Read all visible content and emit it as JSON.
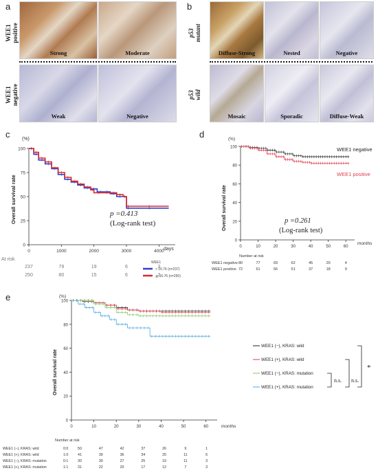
{
  "panel_a": {
    "letter": "a",
    "row_labels": {
      "positive": "WEE1\npositive",
      "negative": "WEE1\nnegative"
    },
    "tiles": [
      "Strong",
      "Moderate",
      "Weak",
      "Negative"
    ]
  },
  "panel_b": {
    "letter": "b",
    "row_labels": {
      "mutant": "p53\nmutant",
      "wild": "p53\nwild"
    },
    "tiles": [
      "Diffuse-Strong",
      "Nested",
      "Negative",
      "Mosaic",
      "Sporadic",
      "Diffuse-Weak"
    ]
  },
  "panel_c": {
    "letter": "c",
    "y_unit": "(%)",
    "x_unit": "days",
    "ylabel": "Overall survival rate",
    "pvalue": "p =0.413",
    "test": "(Log-rank test)",
    "at_risk_label": "At risk",
    "legend_title": "WEE1",
    "legend": [
      "< 16.76 (n=237)",
      "≧ 16.76 (n=250)"
    ],
    "at_risk_rows": [
      [
        "237",
        "79",
        "19",
        "6",
        "3"
      ],
      [
        "250",
        "80",
        "15",
        "6",
        "2"
      ]
    ]
  },
  "panel_d": {
    "letter": "d",
    "y_unit": "(%)",
    "x_unit": "months",
    "ylabel": "Overall survival rate",
    "series_labels": [
      "WEE1 negative",
      "WEE1 positive"
    ],
    "pvalue": "p =0.261",
    "test": "(Log-rank test)",
    "at_risk_title": "Number at risk",
    "at_risk_rows": [
      {
        "label": "WEE1 negative",
        "values": [
          "80",
          "77",
          "69",
          "62",
          "45",
          "20",
          "4"
        ]
      },
      {
        "label": "WEE1 positive",
        "values": [
          "72",
          "61",
          "56",
          "51",
          "37",
          "18",
          "9"
        ]
      }
    ]
  },
  "panel_e": {
    "letter": "e",
    "y_unit": "(%)",
    "x_unit": "months",
    "ylabel": "Overall survival rate",
    "legend": [
      "WEE1 (−), KRAS: wild",
      "WEE1 (+), KRAS: wild",
      "WEE1 (−), KRAS: mutation",
      "WEE1 (+), KRAS: mutation"
    ],
    "ns1": "n.s.",
    "ns2": "n.s.",
    "star": "*",
    "at_risk_title": "Number at risk",
    "at_risk_rows": [
      {
        "label": "WEE1 (−), KRAS: wild",
        "code": "0:0",
        "values": [
          "50",
          "47",
          "42",
          "37",
          "26",
          "9",
          "1"
        ]
      },
      {
        "label": "WEE1 (+), KRAS: wild",
        "code": "1:0",
        "values": [
          "41",
          "39",
          "36",
          "34",
          "25",
          "11",
          "6"
        ]
      },
      {
        "label": "WEE1 (−), KRAS: mutation",
        "code": "0:1",
        "values": [
          "30",
          "30",
          "27",
          "25",
          "19",
          "11",
          "3"
        ]
      },
      {
        "label": "WEE1 (+), KRAS: mutation",
        "code": "1:1",
        "values": [
          "31",
          "22",
          "20",
          "17",
          "12",
          "7",
          "3"
        ]
      }
    ]
  },
  "chart_data": [
    {
      "panel": "c",
      "type": "line",
      "xlabel": "days",
      "ylabel": "Overall survival rate",
      "xlim": [
        0,
        4500
      ],
      "ylim": [
        0,
        100
      ],
      "xticks": [
        0,
        1000,
        2000,
        3000,
        4000
      ],
      "yticks": [
        0,
        25,
        50,
        75,
        100
      ],
      "series": [
        {
          "name": "< 16.76 (n=237)",
          "color": "#2a3fd6",
          "x": [
            0,
            150,
            300,
            500,
            700,
            900,
            1100,
            1300,
            1500,
            1700,
            1900,
            2100,
            2300,
            2500,
            2700,
            2900,
            3000,
            3100,
            4300
          ],
          "y": [
            100,
            94,
            88,
            84,
            79,
            73,
            68,
            65,
            62,
            59,
            58,
            55,
            55,
            53,
            50,
            50,
            38,
            38,
            38
          ]
        },
        {
          "name": "≧ 16.76 (n=250)",
          "color": "#d62a2a",
          "x": [
            0,
            150,
            300,
            500,
            700,
            900,
            1100,
            1300,
            1500,
            1700,
            1900,
            2000,
            2300,
            2500,
            2700,
            2900,
            3000,
            3100,
            4300
          ],
          "y": [
            100,
            96,
            90,
            86,
            80,
            75,
            70,
            66,
            63,
            60,
            57,
            54,
            54,
            54,
            52,
            50,
            40,
            40,
            40
          ]
        }
      ]
    },
    {
      "panel": "d",
      "type": "line",
      "xlabel": "months",
      "ylabel": "Overall survival rate",
      "xlim": [
        0,
        65
      ],
      "ylim": [
        0,
        100
      ],
      "xticks": [
        0,
        10,
        20,
        30,
        40,
        50,
        60
      ],
      "yticks": [
        0,
        20,
        40,
        60,
        80,
        100
      ],
      "series": [
        {
          "name": "WEE1 negative",
          "color": "#333333",
          "x": [
            0,
            5,
            10,
            15,
            20,
            25,
            30,
            35,
            40,
            50,
            62
          ],
          "y": [
            100,
            99,
            98,
            96,
            94,
            92,
            90,
            89,
            89,
            89,
            89
          ]
        },
        {
          "name": "WEE1 positive",
          "color": "#e23b4e",
          "x": [
            0,
            5,
            10,
            15,
            20,
            25,
            30,
            35,
            40,
            50,
            62
          ],
          "y": [
            100,
            98,
            96,
            92,
            89,
            86,
            84,
            83,
            82,
            82,
            82
          ]
        }
      ]
    },
    {
      "panel": "e",
      "type": "line",
      "xlabel": "months",
      "ylabel": "Overall survival rate",
      "xlim": [
        0,
        65
      ],
      "ylim": [
        0,
        100
      ],
      "xticks": [
        0,
        10,
        20,
        30,
        40,
        50,
        60
      ],
      "yticks": [
        0,
        20,
        40,
        60,
        80,
        100
      ],
      "series": [
        {
          "name": "WEE1 (−), KRAS: wild",
          "color": "#222222",
          "x": [
            0,
            5,
            10,
            15,
            20,
            25,
            30,
            40,
            50,
            62
          ],
          "y": [
            100,
            99,
            98,
            96,
            94,
            92,
            91,
            91,
            91,
            91
          ]
        },
        {
          "name": "WEE1 (+), KRAS: wild",
          "color": "#e23b4e",
          "x": [
            0,
            5,
            10,
            15,
            20,
            25,
            30,
            40,
            50,
            62
          ],
          "y": [
            100,
            100,
            98,
            96,
            93,
            92,
            91,
            90,
            90,
            90
          ]
        },
        {
          "name": "WEE1 (−), KRAS: mutation",
          "color": "#7dc95e",
          "x": [
            0,
            5,
            10,
            15,
            20,
            25,
            30,
            40,
            50,
            62
          ],
          "y": [
            100,
            100,
            97,
            94,
            90,
            88,
            87,
            87,
            87,
            87
          ]
        },
        {
          "name": "WEE1 (+), KRAS: mutation",
          "color": "#4da6e0",
          "x": [
            0,
            3,
            6,
            10,
            13,
            17,
            20,
            25,
            30,
            35,
            40,
            50,
            62
          ],
          "y": [
            100,
            97,
            94,
            90,
            87,
            84,
            80,
            77,
            77,
            70,
            70,
            70,
            70
          ]
        }
      ]
    }
  ]
}
